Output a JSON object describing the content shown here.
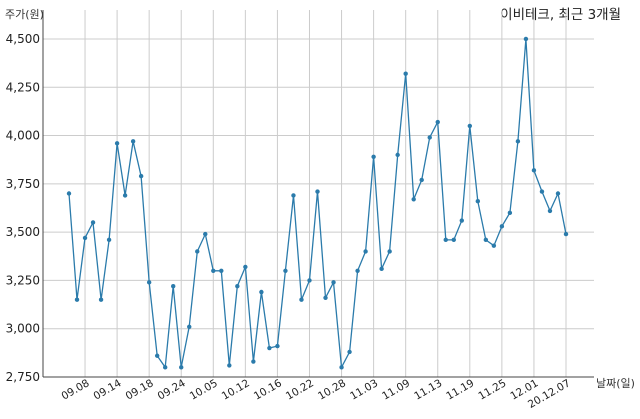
{
  "chart_data": {
    "type": "line",
    "title": "이비테크, 최근 3개월",
    "ylabel": "주가(원)",
    "xlabel": "날짜(일)",
    "ylim": [
      2750,
      4650
    ],
    "yticks": [
      2750,
      3000,
      3250,
      3500,
      3750,
      4000,
      4250,
      4500
    ],
    "ytick_labels": [
      "2,750",
      "3,000",
      "3,250",
      "3,500",
      "3,750",
      "4,000",
      "4,250",
      "4,500"
    ],
    "grid": true,
    "xtick_labels": [
      "09.08",
      "09.14",
      "09.18",
      "09.24",
      "10.05",
      "10.12",
      "10.16",
      "10.22",
      "10.28",
      "11.03",
      "11.09",
      "11.13",
      "11.19",
      "11.25",
      "12.01",
      "20.12.07"
    ],
    "xtick_positions": [
      2,
      6,
      10,
      14,
      18,
      22,
      26,
      30,
      34,
      38,
      42,
      46,
      50,
      54,
      58,
      62
    ],
    "color": "#2b7bab",
    "series": [
      {
        "values": [
          3700,
          3150,
          3470,
          3550,
          3150,
          3460,
          3960,
          3690,
          3970,
          3790,
          3240,
          2860,
          2800,
          3220,
          2800,
          3010,
          3400,
          3490,
          3300,
          3300,
          2810,
          3220,
          3320,
          2830,
          3190,
          2900,
          2910,
          3300,
          3690,
          3150,
          3250,
          3710,
          3160,
          3240,
          2800,
          2880,
          3300,
          3400,
          3890,
          3310,
          3400,
          3900,
          4320,
          3670,
          3770,
          3990,
          4070,
          3460,
          3460,
          3560,
          4050,
          3660,
          3460,
          3430,
          3530,
          3600,
          3970,
          4500,
          3820,
          3710,
          3610,
          3700,
          3490
        ]
      }
    ]
  }
}
